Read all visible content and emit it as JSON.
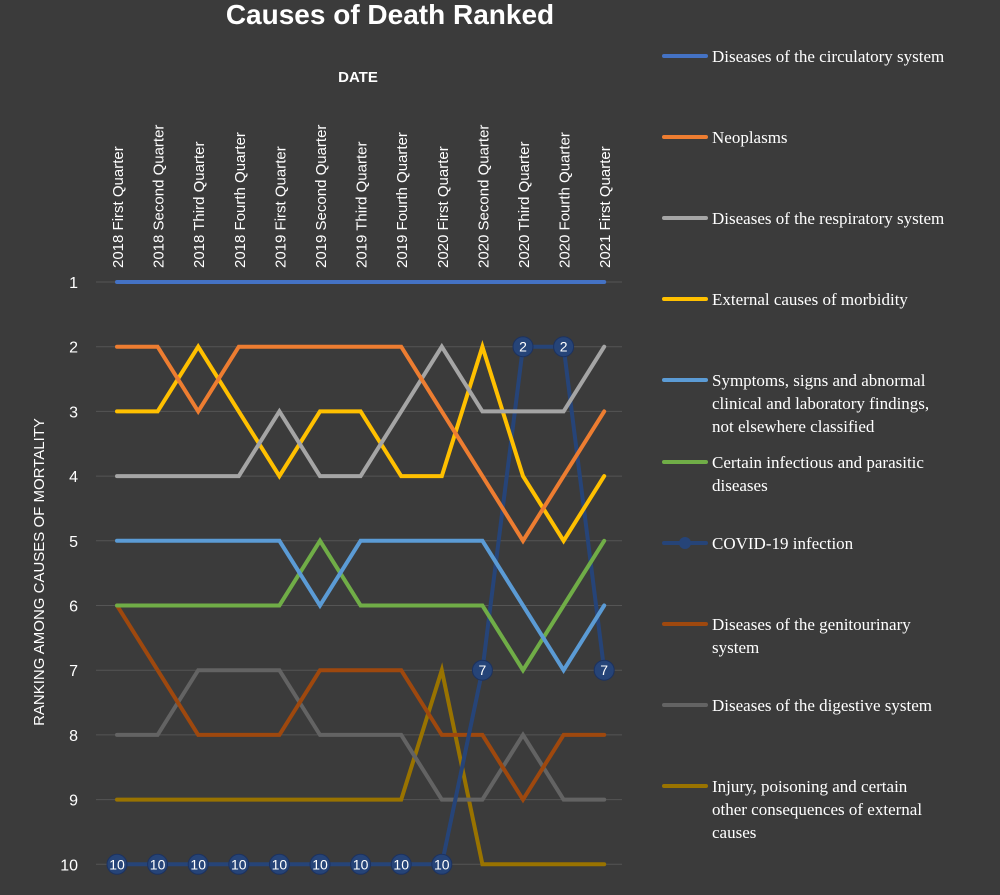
{
  "chart_data": {
    "type": "line",
    "title": "Causes of Death Ranked",
    "xlabel": "DATE",
    "ylabel": "RANKING AMONG CAUSES OF MORTALITY",
    "y_axis_reversed": true,
    "ylim": [
      1,
      10
    ],
    "yticks": [
      1,
      2,
      3,
      4,
      5,
      6,
      7,
      8,
      9,
      10
    ],
    "grid": true,
    "legend_position": "right",
    "categories": [
      "2018 First Quarter",
      "2018 Second Quarter",
      "2018 Third Quarter",
      "2018 Fourth Quarter",
      "2019 First Quarter",
      "2019 Second Quarter",
      "2019 Third Quarter",
      "2019 Fourth Quarter",
      "2020 First Quarter",
      "2020 Second Quarter",
      "2020 Third Quarter",
      "2020 Fourth Quarter",
      "2021 First Quarter"
    ],
    "series": [
      {
        "name": "Diseases of the circulatory system",
        "color": "#4472c4",
        "values": [
          1,
          1,
          1,
          1,
          1,
          1,
          1,
          1,
          1,
          1,
          1,
          1,
          1
        ]
      },
      {
        "name": "Neoplasms",
        "color": "#ed7d31",
        "values": [
          2,
          2,
          3,
          2,
          2,
          2,
          2,
          2,
          3,
          4,
          5,
          4,
          3
        ]
      },
      {
        "name": "Diseases of the respiratory system",
        "color": "#a5a5a5",
        "values": [
          4,
          4,
          4,
          4,
          3,
          4,
          4,
          3,
          2,
          3,
          3,
          3,
          2
        ]
      },
      {
        "name": "External causes of morbidity",
        "color": "#ffc000",
        "values": [
          3,
          3,
          2,
          3,
          4,
          3,
          3,
          4,
          4,
          2,
          4,
          5,
          4
        ]
      },
      {
        "name": "Symptoms, signs and abnormal clinical and laboratory findings, not elsewhere classified",
        "legend_lines": [
          "Symptoms, signs and abnormal",
          "clinical and laboratory findings,",
          "not elsewhere classified"
        ],
        "color": "#5b9bd5",
        "values": [
          5,
          5,
          5,
          5,
          5,
          6,
          5,
          5,
          5,
          5,
          6,
          7,
          6
        ]
      },
      {
        "name": "Certain infectious and parasitic diseases",
        "legend_lines": [
          "Certain infectious and parasitic",
          "diseases"
        ],
        "color": "#70ad47",
        "values": [
          6,
          6,
          6,
          6,
          6,
          5,
          6,
          6,
          6,
          6,
          7,
          6,
          5
        ]
      },
      {
        "name": "COVID-19 infection",
        "color": "#264478",
        "markers": true,
        "data_labels": [
          "10",
          "10",
          "10",
          "10",
          "10",
          "10",
          "10",
          "10",
          "10",
          "7",
          "2",
          "2",
          "7"
        ],
        "values": [
          10,
          10,
          10,
          10,
          10,
          10,
          10,
          10,
          10,
          7,
          2,
          2,
          7
        ]
      },
      {
        "name": "Diseases of the genitourinary system",
        "legend_lines": [
          "Diseases of the genitourinary",
          "system"
        ],
        "color": "#9e480e",
        "values": [
          6,
          7,
          8,
          8,
          8,
          7,
          7,
          7,
          8,
          8,
          9,
          8,
          8
        ]
      },
      {
        "name": "Diseases of the digestive system",
        "color": "#636363",
        "values": [
          8,
          8,
          7,
          7,
          7,
          8,
          8,
          8,
          9,
          9,
          8,
          9,
          9
        ]
      },
      {
        "name": "Injury, poisoning and certain other consequences of external causes",
        "legend_lines": [
          "Injury, poisoning and certain",
          "other consequences of external",
          "causes"
        ],
        "color": "#997300",
        "values": [
          9,
          9,
          9,
          9,
          9,
          9,
          9,
          9,
          7,
          10,
          10,
          10,
          10
        ]
      }
    ]
  }
}
